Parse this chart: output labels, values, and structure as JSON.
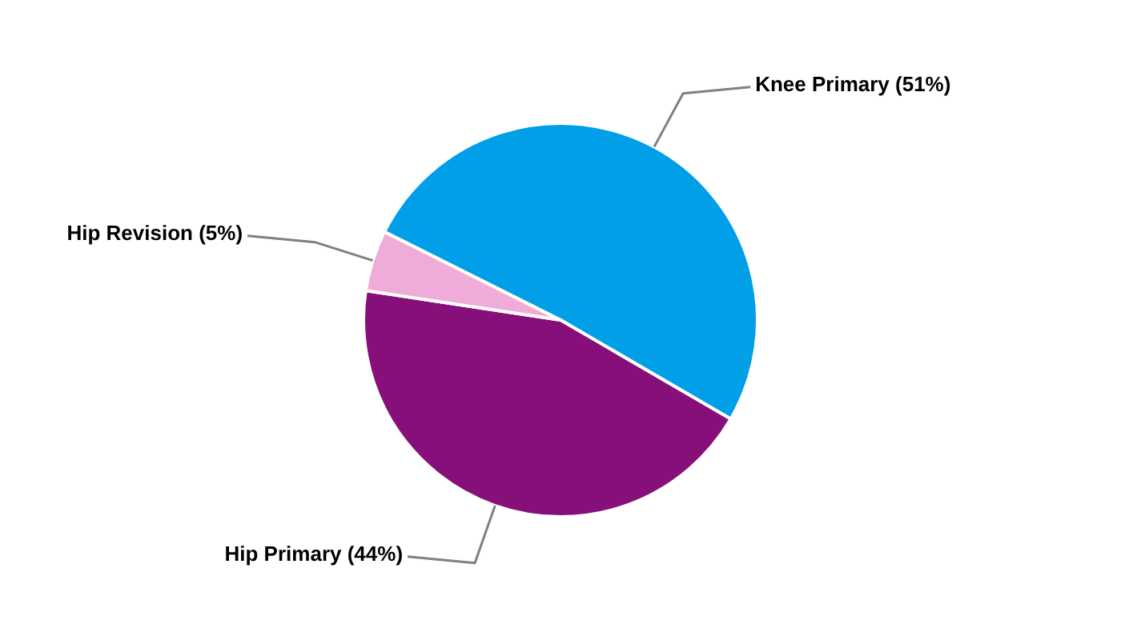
{
  "chart_data": {
    "type": "pie",
    "categories": [
      "Knee Primary",
      "Hip Primary",
      "Hip Revision"
    ],
    "values": [
      51,
      44,
      5
    ],
    "colors": [
      "#009fe8",
      "#870f7a",
      "#f0acd8"
    ],
    "value_labels": [
      "(51%)",
      "(44%)",
      "(5%)"
    ]
  }
}
